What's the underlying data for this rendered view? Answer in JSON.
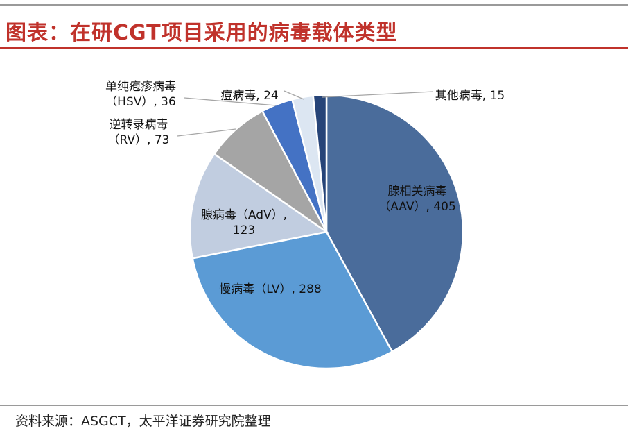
{
  "title": "图表：在研CGT项目采用的病毒载体类型",
  "source": "资料来源：ASGCT，太平洋证券研究院整理",
  "chart_data": {
    "type": "pie",
    "title": "",
    "slices": [
      {
        "name": "腺相关病毒（AAV）",
        "value": 405,
        "color": "#4a6c9b",
        "label_lines": [
          "腺相关病毒",
          "（AAV）, 405"
        ]
      },
      {
        "name": "慢病毒（LV）",
        "value": 288,
        "color": "#5b9bd5",
        "label_lines": [
          "慢病毒（LV）, 288"
        ]
      },
      {
        "name": "腺病毒（AdV）",
        "value": 123,
        "color": "#c1cde0",
        "label_lines": [
          "腺病毒（AdV）,",
          "123"
        ]
      },
      {
        "name": "逆转录病毒（RV）",
        "value": 73,
        "color": "#a5a5a5",
        "label_lines": [
          "逆转录病毒",
          "（RV）, 73"
        ]
      },
      {
        "name": "单纯疱疹病毒（HSV）",
        "value": 36,
        "color": "#4472c4",
        "label_lines": [
          "单纯疱疹病毒",
          "（HSV）, 36"
        ]
      },
      {
        "name": "痘病毒",
        "value": 24,
        "color": "#dce6f2",
        "label_lines": [
          "痘病毒, 24"
        ]
      },
      {
        "name": "其他病毒",
        "value": 15,
        "color": "#264478",
        "label_lines": [
          "其他病毒, 15"
        ]
      }
    ]
  }
}
